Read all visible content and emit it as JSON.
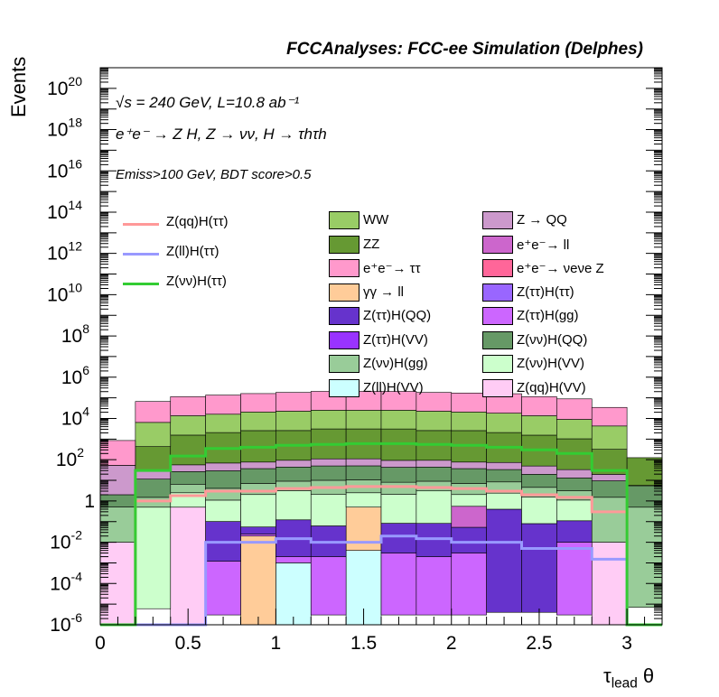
{
  "chart_data": {
    "type": "stacked-histogram",
    "title": "FCCAnalyses: FCC-ee Simulation (Delphes)",
    "ylabel": "Events",
    "xlabel": "τ",
    "xlabel_sub": "lead",
    "xlabel_suffix": " θ",
    "yscale": "log",
    "xlim": [
      0,
      3.2
    ],
    "ylim": [
      1e-06,
      1e+21
    ],
    "x_ticks": [
      "0",
      "0.5",
      "1",
      "1.5",
      "2",
      "2.5",
      "3"
    ],
    "annotations": {
      "line1": "√s = 240 GeV, L=10.8 ab⁻¹",
      "line2": "e⁺e⁻ → Z H, Z → νν, H → τhτh",
      "line3": "Emiss>100 GeV, BDT score>0.5"
    },
    "bin_edges": [
      0,
      0.2,
      0.4,
      0.6,
      0.8,
      1.0,
      1.2,
      1.4,
      1.6,
      1.8,
      2.0,
      2.2,
      2.4,
      2.6,
      2.8,
      3.0,
      3.2
    ],
    "stack": [
      {
        "name": "Z(qq)H(VV)",
        "color": "#ffccf5",
        "values": [
          0.01,
          1e-06,
          0.5,
          1e-06,
          1e-06,
          1e-06,
          1e-06,
          1e-06,
          1e-06,
          1e-06,
          1e-06,
          1e-06,
          1e-06,
          1e-06,
          0.01,
          1e-06
        ]
      },
      {
        "name": "Z(ll)H(VV)",
        "color": "#ccffff",
        "values": [
          1e-06,
          1e-06,
          1e-06,
          1e-06,
          1e-06,
          0.001,
          1e-06,
          0.004,
          1e-06,
          1e-06,
          1e-06,
          1e-06,
          1e-06,
          1e-06,
          1e-06,
          1e-06
        ]
      },
      {
        "name": "γγ → ll",
        "color": "#ffcc99",
        "values": [
          1e-06,
          1e-06,
          1e-06,
          1e-06,
          0.02,
          1e-06,
          1e-06,
          0.5,
          1e-06,
          1e-06,
          1e-06,
          1e-06,
          1e-06,
          1e-06,
          1e-06,
          1e-06
        ]
      },
      {
        "name": "Z(ττ)H(gg)",
        "color": "#cc66ff",
        "values": [
          1e-06,
          1e-06,
          1e-06,
          0.0012,
          0.005,
          0.001,
          0.002,
          1e-06,
          0.003,
          0.002,
          0.003,
          1e-06,
          1e-06,
          0.01,
          1e-06,
          1e-06
        ]
      },
      {
        "name": "Z(ττ)H(QQ)",
        "color": "#6633cc",
        "values": [
          1e-06,
          1e-06,
          0.0015,
          0.1,
          0.03,
          0.12,
          0.06,
          1e-06,
          0.08,
          0.08,
          0.05,
          0.4,
          0.08,
          0.1,
          1e-06,
          1e-06
        ]
      },
      {
        "name": "e⁺e⁻ → ll",
        "color": "#cc66cc",
        "values": [
          1e-06,
          1e-06,
          1e-06,
          1e-06,
          1e-06,
          1e-06,
          1e-06,
          1e-06,
          1e-06,
          1e-06,
          0.5,
          1e-06,
          1e-06,
          1e-06,
          1e-06,
          1e-06
        ]
      },
      {
        "name": "Z(νν)H(VV)",
        "color": "#ccffcc",
        "values": [
          1e-06,
          0.5,
          2,
          1,
          2,
          3,
          2,
          2,
          2,
          3,
          1.5,
          2,
          1.5,
          1,
          1e-06,
          1e-06
        ]
      },
      {
        "name": "Z(νν)H(gg)",
        "color": "#99cc99",
        "values": [
          0.5,
          1,
          4,
          3,
          5,
          6,
          8,
          8,
          6,
          6,
          5,
          6,
          3,
          2,
          1.5,
          0.5
        ]
      },
      {
        "name": "Z(νν)H(QQ)",
        "color": "#669966",
        "values": [
          1.5,
          10,
          20,
          25,
          30,
          35,
          40,
          40,
          35,
          35,
          30,
          25,
          15,
          10,
          8,
          5
        ]
      },
      {
        "name": "Z → QQ",
        "color": "#cc99cc",
        "values": [
          50,
          20,
          30,
          40,
          40,
          50,
          60,
          60,
          50,
          50,
          40,
          40,
          30,
          20,
          10,
          0.2
        ]
      },
      {
        "name": "ZZ",
        "color": "#669933",
        "values": [
          1,
          400,
          1500,
          2000,
          2500,
          2500,
          3000,
          3000,
          3000,
          2500,
          2500,
          2000,
          1500,
          1000,
          300,
          120
        ]
      },
      {
        "name": "WW",
        "color": "#99cc66",
        "values": [
          1e-06,
          6000,
          12000,
          14000,
          18000,
          20000,
          22000,
          22000,
          22000,
          20000,
          18000,
          16000,
          12000,
          8000,
          4000,
          1e-06
        ]
      },
      {
        "name": "e⁺e⁻→ ττ",
        "color": "#ff99cc",
        "values": [
          800,
          60000,
          100000,
          120000,
          140000,
          160000,
          180000,
          180000,
          180000,
          160000,
          150000,
          140000,
          100000,
          80000,
          30000,
          1e-06
        ]
      }
    ],
    "lines": [
      {
        "name": "Z(qq)H(ττ)",
        "color": "#ff9999",
        "values": [
          1e-06,
          1,
          1.8,
          3,
          3,
          4,
          4.5,
          5,
          5,
          4.5,
          4,
          3,
          2,
          1.5,
          0.3,
          1e-06
        ]
      },
      {
        "name": "Z(ll)H(ττ)",
        "color": "#9999ff",
        "values": [
          1e-06,
          1e-06,
          1e-06,
          0.01,
          0.01,
          0.015,
          0.01,
          0.01,
          0.02,
          0.015,
          0.01,
          0.01,
          0.005,
          0.005,
          0.0015,
          1e-06
        ]
      },
      {
        "name": "Z(νν)H(ττ)",
        "color": "#33cc33",
        "values": [
          1e-06,
          30,
          150,
          350,
          400,
          500,
          550,
          600,
          600,
          550,
          500,
          400,
          300,
          200,
          30,
          1e-06
        ]
      }
    ],
    "legend_lines": [
      {
        "label": "Z(qq)H(ττ)",
        "color": "#ff9999"
      },
      {
        "label": "Z(ll)H(ττ)",
        "color": "#9999ff"
      },
      {
        "label": "Z(νν)H(ττ)",
        "color": "#33cc33"
      }
    ],
    "legend_boxes_col1": [
      {
        "label": "WW",
        "color": "#99cc66"
      },
      {
        "label": "ZZ",
        "color": "#669933"
      },
      {
        "label": "e⁺e⁻→ ττ",
        "color": "#ff99cc"
      },
      {
        "label": "γγ → ll",
        "color": "#ffcc99"
      },
      {
        "label": "Z(ττ)H(QQ)",
        "color": "#6633cc"
      },
      {
        "label": "Z(ττ)H(VV)",
        "color": "#9933ff"
      },
      {
        "label": "Z(νν)H(gg)",
        "color": "#99cc99"
      },
      {
        "label": "Z(ll)H(VV)",
        "color": "#ccffff"
      }
    ],
    "legend_boxes_col2": [
      {
        "label": "Z → QQ",
        "color": "#cc99cc"
      },
      {
        "label": "e⁺e⁻→ ll",
        "color": "#cc66cc"
      },
      {
        "label": "e⁺e⁻→ νeνe Z",
        "color": "#ff6699"
      },
      {
        "label": "Z(ττ)H(ττ)",
        "color": "#9966ff"
      },
      {
        "label": "Z(ττ)H(gg)",
        "color": "#cc66ff"
      },
      {
        "label": "Z(νν)H(QQ)",
        "color": "#669966"
      },
      {
        "label": "Z(νν)H(VV)",
        "color": "#ccffcc"
      },
      {
        "label": "Z(qq)H(VV)",
        "color": "#ffccf5"
      }
    ]
  }
}
